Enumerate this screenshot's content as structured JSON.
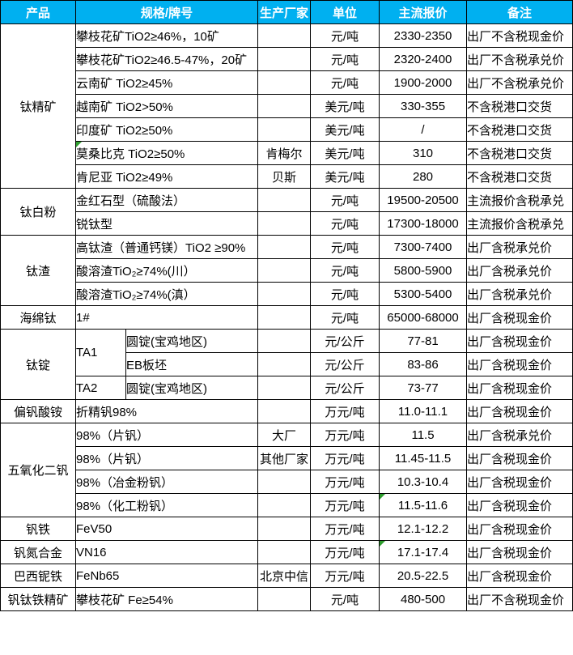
{
  "colors": {
    "header_bg": "#00B0F0",
    "header_text": "#FFFFFF",
    "grid_border": "#000000",
    "comment_marker_green": "#2E9E2E"
  },
  "columns": [
    "产品",
    "规格/牌号",
    "生产厂家",
    "单位",
    "主流报价",
    "备注"
  ],
  "rows": [
    {
      "cells": [
        {
          "name": "product-cell",
          "text": "钛精矿",
          "rowspan": 7,
          "align": "center"
        },
        {
          "name": "spec-cell",
          "text": "攀枝花矿TiO2≥46%，10矿",
          "colspan": 2,
          "align": "left"
        },
        {
          "name": "manufacturer-cell",
          "text": "",
          "align": "center"
        },
        {
          "name": "unit-cell",
          "text": "元/吨",
          "align": "center"
        },
        {
          "name": "price-cell",
          "text": "2330-2350",
          "align": "center"
        },
        {
          "name": "note-cell",
          "text": "出厂不含税现金价",
          "align": "left"
        }
      ]
    },
    {
      "cells": [
        {
          "name": "spec-cell",
          "text": "攀枝花矿TiO2≥46.5-47%，20矿",
          "colspan": 2,
          "align": "left"
        },
        {
          "name": "manufacturer-cell",
          "text": "",
          "align": "center"
        },
        {
          "name": "unit-cell",
          "text": "元/吨",
          "align": "center"
        },
        {
          "name": "price-cell",
          "text": "2320-2400",
          "align": "center"
        },
        {
          "name": "note-cell",
          "text": "出厂不含税承兑价",
          "align": "left"
        }
      ]
    },
    {
      "cells": [
        {
          "name": "spec-cell",
          "text": "云南矿 TiO2≥45%",
          "colspan": 2,
          "align": "left"
        },
        {
          "name": "manufacturer-cell",
          "text": "",
          "align": "center"
        },
        {
          "name": "unit-cell",
          "text": "元/吨",
          "align": "center"
        },
        {
          "name": "price-cell",
          "text": "1900-2000",
          "align": "center"
        },
        {
          "name": "note-cell",
          "text": "出厂不含税承兑价",
          "align": "left"
        }
      ]
    },
    {
      "cells": [
        {
          "name": "spec-cell",
          "text": "越南矿 TiO2>50%",
          "colspan": 2,
          "align": "left"
        },
        {
          "name": "manufacturer-cell",
          "text": "",
          "align": "center"
        },
        {
          "name": "unit-cell",
          "text": "美元/吨",
          "align": "center"
        },
        {
          "name": "price-cell",
          "text": "330-355",
          "align": "center"
        },
        {
          "name": "note-cell",
          "text": "不含税港口交货",
          "align": "left"
        }
      ]
    },
    {
      "cells": [
        {
          "name": "spec-cell",
          "text": "印度矿 TiO2≥50%",
          "colspan": 2,
          "align": "left"
        },
        {
          "name": "manufacturer-cell",
          "text": "",
          "align": "center"
        },
        {
          "name": "unit-cell",
          "text": "美元/吨",
          "align": "center"
        },
        {
          "name": "price-cell",
          "text": "/",
          "align": "center"
        },
        {
          "name": "note-cell",
          "text": "不含税港口交货",
          "align": "left"
        }
      ]
    },
    {
      "cells": [
        {
          "name": "spec-cell",
          "text": "莫桑比克 TiO2≥50%",
          "colspan": 2,
          "align": "left",
          "marker": true
        },
        {
          "name": "manufacturer-cell",
          "text": "肯梅尔",
          "align": "center"
        },
        {
          "name": "unit-cell",
          "text": "美元/吨",
          "align": "center"
        },
        {
          "name": "price-cell",
          "text": "310",
          "align": "center"
        },
        {
          "name": "note-cell",
          "text": "不含税港口交货",
          "align": "left"
        }
      ]
    },
    {
      "cells": [
        {
          "name": "spec-cell",
          "text": "肯尼亚 TiO2≥49%",
          "colspan": 2,
          "align": "left"
        },
        {
          "name": "manufacturer-cell",
          "text": "贝斯",
          "align": "center"
        },
        {
          "name": "unit-cell",
          "text": "美元/吨",
          "align": "center"
        },
        {
          "name": "price-cell",
          "text": "280",
          "align": "center"
        },
        {
          "name": "note-cell",
          "text": "不含税港口交货",
          "align": "left"
        }
      ]
    },
    {
      "cells": [
        {
          "name": "product-cell",
          "text": "钛白粉",
          "rowspan": 2,
          "align": "center"
        },
        {
          "name": "spec-cell",
          "text": "金红石型（硫酸法）",
          "colspan": 2,
          "align": "left"
        },
        {
          "name": "manufacturer-cell",
          "text": "",
          "align": "center"
        },
        {
          "name": "unit-cell",
          "text": "元/吨",
          "align": "center"
        },
        {
          "name": "price-cell",
          "text": "19500-20500",
          "align": "center"
        },
        {
          "name": "note-cell",
          "text": "主流报价含税承兑",
          "align": "left"
        }
      ]
    },
    {
      "cells": [
        {
          "name": "spec-cell",
          "text": "锐钛型",
          "colspan": 2,
          "align": "left"
        },
        {
          "name": "manufacturer-cell",
          "text": "",
          "align": "center"
        },
        {
          "name": "unit-cell",
          "text": "元/吨",
          "align": "center"
        },
        {
          "name": "price-cell",
          "text": "17300-18000",
          "align": "center"
        },
        {
          "name": "note-cell",
          "text": "主流报价含税承兑",
          "align": "left"
        }
      ]
    },
    {
      "cells": [
        {
          "name": "product-cell",
          "text": "钛渣",
          "rowspan": 3,
          "align": "center"
        },
        {
          "name": "spec-cell",
          "text": "高钛渣（普通钙镁）TiO2 ≥90%",
          "colspan": 2,
          "align": "left"
        },
        {
          "name": "manufacturer-cell",
          "text": "",
          "align": "center"
        },
        {
          "name": "unit-cell",
          "text": "元/吨",
          "align": "center"
        },
        {
          "name": "price-cell",
          "text": "7300-7400",
          "align": "center"
        },
        {
          "name": "note-cell",
          "text": "出厂含税承兑价",
          "align": "left"
        }
      ]
    },
    {
      "cells": [
        {
          "name": "spec-cell",
          "text": "酸溶渣TiO₂≥74%(川）",
          "colspan": 2,
          "align": "left"
        },
        {
          "name": "manufacturer-cell",
          "text": "",
          "align": "center"
        },
        {
          "name": "unit-cell",
          "text": "元/吨",
          "align": "center"
        },
        {
          "name": "price-cell",
          "text": "5800-5900",
          "align": "center"
        },
        {
          "name": "note-cell",
          "text": "出厂含税承兑价",
          "align": "left"
        }
      ]
    },
    {
      "cells": [
        {
          "name": "spec-cell",
          "text": "酸溶渣TiO₂≥74%(滇）",
          "colspan": 2,
          "align": "left"
        },
        {
          "name": "manufacturer-cell",
          "text": "",
          "align": "center"
        },
        {
          "name": "unit-cell",
          "text": "元/吨",
          "align": "center"
        },
        {
          "name": "price-cell",
          "text": "5300-5400",
          "align": "center"
        },
        {
          "name": "note-cell",
          "text": "出厂含税承兑价",
          "align": "left"
        }
      ]
    },
    {
      "cells": [
        {
          "name": "product-cell",
          "text": "海绵钛",
          "align": "center"
        },
        {
          "name": "spec-cell",
          "text": "1#",
          "colspan": 2,
          "align": "left"
        },
        {
          "name": "manufacturer-cell",
          "text": "",
          "align": "center"
        },
        {
          "name": "unit-cell",
          "text": "元/吨",
          "align": "center"
        },
        {
          "name": "price-cell",
          "text": "65000-68000",
          "align": "center"
        },
        {
          "name": "note-cell",
          "text": "出厂含税现金价",
          "align": "left"
        }
      ]
    },
    {
      "cells": [
        {
          "name": "product-cell",
          "text": "钛锭",
          "rowspan": 3,
          "align": "center"
        },
        {
          "name": "grade-cell",
          "text": "TA1",
          "rowspan": 2,
          "align": "left"
        },
        {
          "name": "spec-detail-cell",
          "text": "圆锭(宝鸡地区)",
          "align": "left"
        },
        {
          "name": "manufacturer-cell",
          "text": "",
          "align": "center"
        },
        {
          "name": "unit-cell",
          "text": "元/公斤",
          "align": "center"
        },
        {
          "name": "price-cell",
          "text": "77-81",
          "align": "center"
        },
        {
          "name": "note-cell",
          "text": "出厂含税现金价",
          "align": "left"
        }
      ]
    },
    {
      "cells": [
        {
          "name": "spec-detail-cell",
          "text": "EB板坯",
          "align": "left"
        },
        {
          "name": "manufacturer-cell",
          "text": "",
          "align": "center"
        },
        {
          "name": "unit-cell",
          "text": "元/公斤",
          "align": "center"
        },
        {
          "name": "price-cell",
          "text": "83-86",
          "align": "center"
        },
        {
          "name": "note-cell",
          "text": "出厂含税现金价",
          "align": "left"
        }
      ]
    },
    {
      "cells": [
        {
          "name": "grade-cell",
          "text": "TA2",
          "align": "left"
        },
        {
          "name": "spec-detail-cell",
          "text": "圆锭(宝鸡地区)",
          "align": "left"
        },
        {
          "name": "manufacturer-cell",
          "text": "",
          "align": "center"
        },
        {
          "name": "unit-cell",
          "text": "元/公斤",
          "align": "center"
        },
        {
          "name": "price-cell",
          "text": "73-77",
          "align": "center"
        },
        {
          "name": "note-cell",
          "text": "出厂含税现金价",
          "align": "left"
        }
      ]
    },
    {
      "cells": [
        {
          "name": "product-cell",
          "text": "偏钒酸铵",
          "align": "center"
        },
        {
          "name": "spec-cell",
          "text": "折精钒98%",
          "colspan": 2,
          "align": "left"
        },
        {
          "name": "manufacturer-cell",
          "text": "",
          "align": "center"
        },
        {
          "name": "unit-cell",
          "text": "万元/吨",
          "align": "center"
        },
        {
          "name": "price-cell",
          "text": "11.0-11.1",
          "align": "center"
        },
        {
          "name": "note-cell",
          "text": "出厂含税现金价",
          "align": "left"
        }
      ]
    },
    {
      "cells": [
        {
          "name": "product-cell",
          "text": "五氧化二钒",
          "rowspan": 4,
          "align": "center"
        },
        {
          "name": "spec-cell",
          "text": "98%（片钒）",
          "colspan": 2,
          "align": "left"
        },
        {
          "name": "manufacturer-cell",
          "text": "大厂",
          "align": "center"
        },
        {
          "name": "unit-cell",
          "text": "万元/吨",
          "align": "center"
        },
        {
          "name": "price-cell",
          "text": "11.5",
          "align": "center"
        },
        {
          "name": "note-cell",
          "text": "出厂含税承兑价",
          "align": "left"
        }
      ]
    },
    {
      "cells": [
        {
          "name": "spec-cell",
          "text": "98%（片钒）",
          "colspan": 2,
          "align": "left"
        },
        {
          "name": "manufacturer-cell",
          "text": "其他厂家",
          "align": "center"
        },
        {
          "name": "unit-cell",
          "text": "万元/吨",
          "align": "center"
        },
        {
          "name": "price-cell",
          "text": "11.45-11.5",
          "align": "center"
        },
        {
          "name": "note-cell",
          "text": "出厂含税现金价",
          "align": "left"
        }
      ]
    },
    {
      "cells": [
        {
          "name": "spec-cell",
          "text": "98%（冶金粉钒）",
          "colspan": 2,
          "align": "left"
        },
        {
          "name": "manufacturer-cell",
          "text": "",
          "align": "center"
        },
        {
          "name": "unit-cell",
          "text": "万元/吨",
          "align": "center"
        },
        {
          "name": "price-cell",
          "text": "10.3-10.4",
          "align": "center"
        },
        {
          "name": "note-cell",
          "text": "出厂含税现金价",
          "align": "left"
        }
      ]
    },
    {
      "cells": [
        {
          "name": "spec-cell",
          "text": "98%（化工粉钒）",
          "colspan": 2,
          "align": "left"
        },
        {
          "name": "manufacturer-cell",
          "text": "",
          "align": "center"
        },
        {
          "name": "unit-cell",
          "text": "万元/吨",
          "align": "center"
        },
        {
          "name": "price-cell",
          "text": "11.5-11.6",
          "align": "center",
          "marker": true
        },
        {
          "name": "note-cell",
          "text": "出厂含税现金价",
          "align": "left"
        }
      ]
    },
    {
      "cells": [
        {
          "name": "product-cell",
          "text": "钒铁",
          "align": "center"
        },
        {
          "name": "spec-cell",
          "text": "FeV50",
          "colspan": 2,
          "align": "left"
        },
        {
          "name": "manufacturer-cell",
          "text": "",
          "align": "center"
        },
        {
          "name": "unit-cell",
          "text": "万元/吨",
          "align": "center"
        },
        {
          "name": "price-cell",
          "text": "12.1-12.2",
          "align": "center"
        },
        {
          "name": "note-cell",
          "text": "出厂含税现金价",
          "align": "left"
        }
      ]
    },
    {
      "cells": [
        {
          "name": "product-cell",
          "text": "钒氮合金",
          "align": "center"
        },
        {
          "name": "spec-cell",
          "text": "VN16",
          "colspan": 2,
          "align": "left"
        },
        {
          "name": "manufacturer-cell",
          "text": "",
          "align": "center"
        },
        {
          "name": "unit-cell",
          "text": "万元/吨",
          "align": "center"
        },
        {
          "name": "price-cell",
          "text": "17.1-17.4",
          "align": "center",
          "marker": true
        },
        {
          "name": "note-cell",
          "text": "出厂含税现金价",
          "align": "left"
        }
      ]
    },
    {
      "cells": [
        {
          "name": "product-cell",
          "text": "巴西铌铁",
          "align": "center"
        },
        {
          "name": "spec-cell",
          "text": "FeNb65",
          "colspan": 2,
          "align": "left"
        },
        {
          "name": "manufacturer-cell",
          "text": "北京中信",
          "align": "center"
        },
        {
          "name": "unit-cell",
          "text": "万元/吨",
          "align": "center"
        },
        {
          "name": "price-cell",
          "text": "20.5-22.5",
          "align": "center"
        },
        {
          "name": "note-cell",
          "text": "出厂含税现金价",
          "align": "left"
        }
      ]
    },
    {
      "cells": [
        {
          "name": "product-cell",
          "text": "钒钛铁精矿",
          "align": "center"
        },
        {
          "name": "spec-cell",
          "text": "攀枝花矿 Fe≥54%",
          "colspan": 2,
          "align": "left"
        },
        {
          "name": "manufacturer-cell",
          "text": "",
          "align": "center"
        },
        {
          "name": "unit-cell",
          "text": "元/吨",
          "align": "center"
        },
        {
          "name": "price-cell",
          "text": "480-500",
          "align": "center"
        },
        {
          "name": "note-cell",
          "text": "出厂不含税现金价",
          "align": "left"
        }
      ]
    }
  ]
}
